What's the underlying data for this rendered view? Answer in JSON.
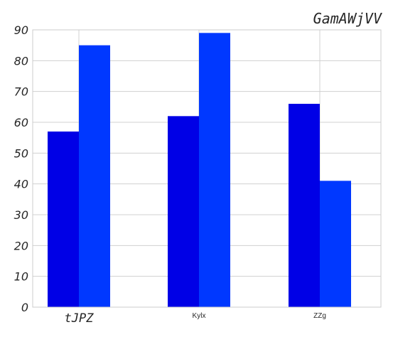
{
  "chart_data": {
    "type": "bar",
    "title": "GamAWjVV",
    "xlabel": "",
    "ylabel": "",
    "categories": [
      "tJPZ",
      "Kylx",
      "ZZg"
    ],
    "series": [
      {
        "values": [
          57,
          62,
          66
        ],
        "color": "#0000e6"
      },
      {
        "values": [
          85,
          89,
          41
        ],
        "color": "#0038ff"
      }
    ],
    "ylim": [
      0,
      90
    ],
    "yticks": [
      0,
      10,
      20,
      30,
      40,
      50,
      60,
      70,
      80,
      90
    ],
    "grid": true,
    "legend": "none"
  }
}
